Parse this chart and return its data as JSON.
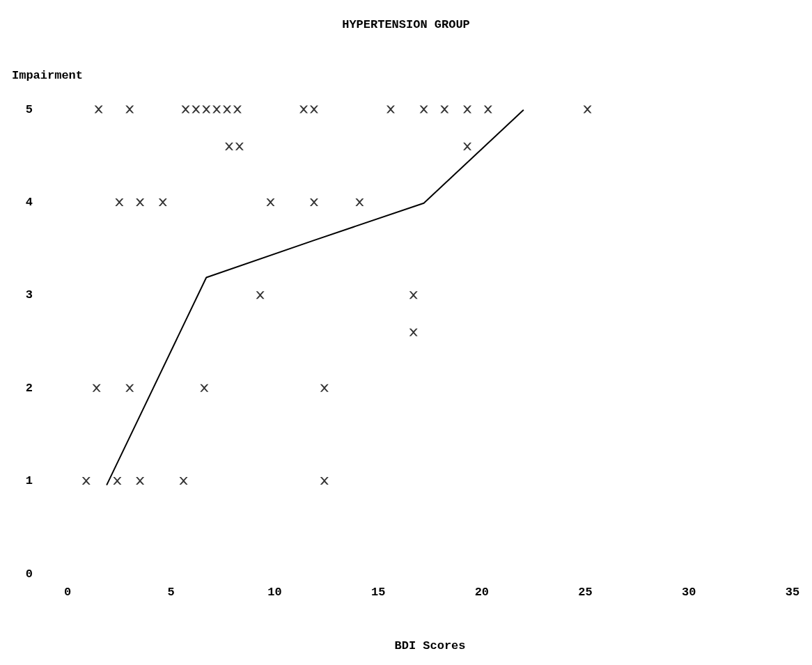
{
  "chart_data": {
    "type": "scatter",
    "title": "HYPERTENSION GROUP",
    "xlabel": "BDI Scores",
    "ylabel": "Impairment",
    "xlim": [
      0,
      35
    ],
    "xticks": [
      0,
      5,
      10,
      15,
      20,
      25,
      30,
      35
    ],
    "ylim": [
      0,
      5
    ],
    "yticks": [
      0,
      1,
      2,
      3,
      4,
      5
    ],
    "grid": false,
    "series": [
      {
        "marker": "cross",
        "color": "#000000",
        "x": [
          1.5,
          3.0,
          5.7,
          6.2,
          6.7,
          7.2,
          7.7,
          8.2,
          11.4,
          11.9,
          15.6,
          17.2,
          18.2,
          19.3,
          20.3,
          25.1,
          7.8,
          8.3,
          19.3,
          2.5,
          3.5,
          4.6,
          9.8,
          11.9,
          14.1,
          9.3,
          16.7,
          16.7,
          1.4,
          3.0,
          6.6,
          12.4,
          0.9,
          2.4,
          3.5,
          5.6,
          12.4
        ],
        "values": [
          5,
          5,
          5,
          5,
          5,
          5,
          5,
          5,
          5,
          5,
          5,
          5,
          5,
          5,
          5,
          5,
          4.6,
          4.6,
          4.6,
          4,
          4,
          4,
          4,
          4,
          4,
          3,
          3,
          2.6,
          2,
          2,
          2,
          2,
          1,
          1,
          1,
          1,
          1
        ]
      },
      {
        "type": "line",
        "marker": "none",
        "color": "#000000",
        "line_style": "solid",
        "x": [
          1.9,
          6.7,
          11.9,
          17.2,
          22.0
        ],
        "values": [
          0.96,
          3.19,
          3.59,
          3.99,
          4.99
        ]
      }
    ]
  }
}
